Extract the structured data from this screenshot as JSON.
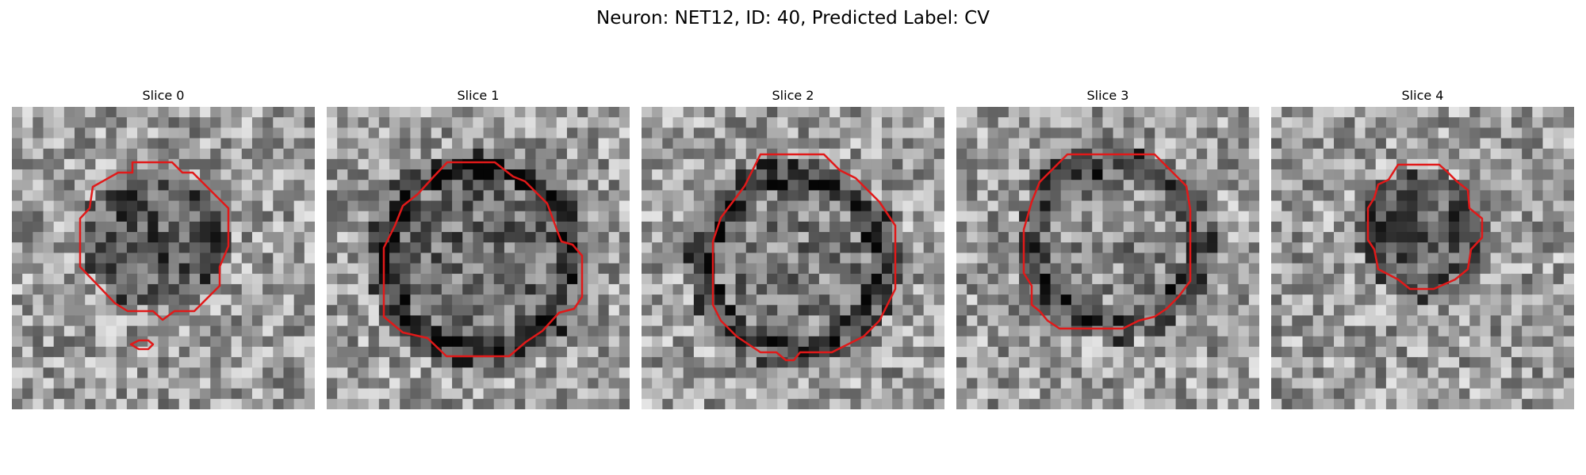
{
  "figure": {
    "title": "Neuron: NET12, ID: 40, Predicted Label: CV",
    "contour_color": "#e11919"
  },
  "slices": [
    {
      "title": "Slice 0"
    },
    {
      "title": "Slice 1"
    },
    {
      "title": "Slice 2"
    },
    {
      "title": "Slice 3"
    },
    {
      "title": "Slice 4"
    }
  ]
}
